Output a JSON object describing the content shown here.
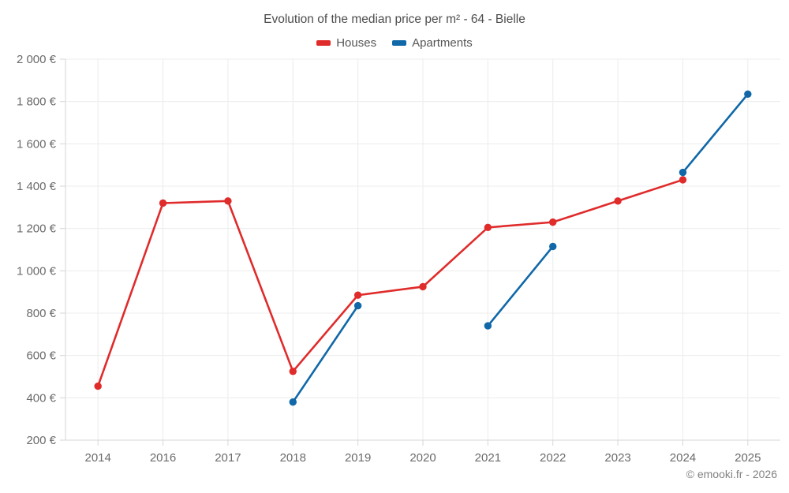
{
  "header": {
    "title": "Evolution of the median price per m² - 64 - Bielle"
  },
  "legend": [
    {
      "label": "Houses",
      "color": "#e02b2b"
    },
    {
      "label": "Apartments",
      "color": "#1068a8"
    }
  ],
  "footer": {
    "copyright": "© emooki.fr - 2026"
  },
  "chart_data": {
    "type": "line",
    "title": "Evolution of the median price per m² - 64 - Bielle",
    "categories": [
      "2014",
      "2016",
      "2017",
      "2018",
      "2019",
      "2020",
      "2021",
      "2022",
      "2023",
      "2024",
      "2025"
    ],
    "series": [
      {
        "name": "Houses",
        "color": "#e02b2b",
        "values": [
          455,
          1320,
          1330,
          525,
          885,
          925,
          1205,
          1230,
          1330,
          1430,
          null
        ]
      },
      {
        "name": "Apartments",
        "color": "#1068a8",
        "values": [
          null,
          null,
          null,
          380,
          835,
          null,
          740,
          1115,
          null,
          1465,
          1835
        ]
      }
    ],
    "xlabel": "",
    "ylabel": "",
    "ylim": [
      200,
      2000
    ],
    "ytick_step": 200,
    "ytick_suffix": " €",
    "grid": true,
    "legend_position": "top",
    "line_breaks_on_missing": true
  },
  "style": {
    "grid_color": "#ececec",
    "axis_color": "#d6d6d6",
    "tick_label_color": "#6b6b6b"
  }
}
